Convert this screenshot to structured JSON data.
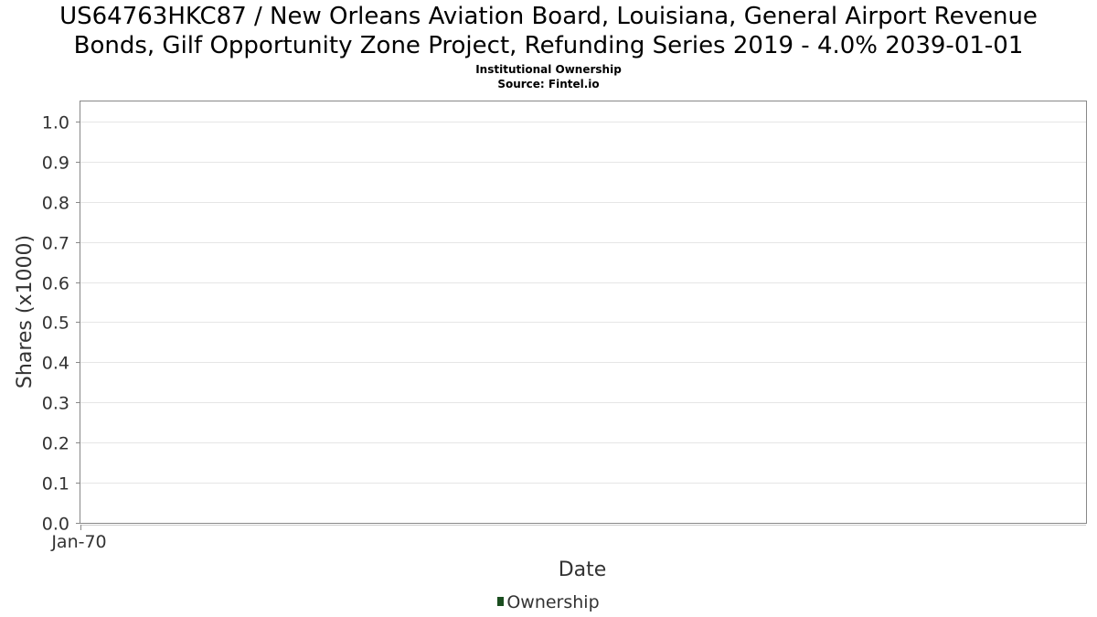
{
  "header": {
    "title_line_1": "US64763HKC87 / New Orleans Aviation Board, Louisiana, General Airport Revenue",
    "title_line_2": "Bonds, Gilf Opportunity Zone Project, Refunding Series 2019 - 4.0% 2039-01-01",
    "subtitle_line_1": "Institutional Ownership",
    "subtitle_line_2": "Source: Fintel.io"
  },
  "colors": {
    "series": "#1a4d1f",
    "gridline": "#e6e6e6",
    "plot_border": "#888888"
  },
  "chart_data": {
    "type": "area",
    "title": "US64763HKC87 / New Orleans Aviation Board, Louisiana, General Airport Revenue Bonds, Gilf Opportunity Zone Project, Refunding Series 2019 - 4.0% 2039-01-01",
    "subtitle": "Institutional Ownership\nSource: Fintel.io",
    "xlabel": "Date",
    "ylabel": "Shares (x1000)",
    "x_tick_labels": [
      "Jan-70"
    ],
    "y_tick_labels": [
      "0.0",
      "0.1",
      "0.2",
      "0.3",
      "0.4",
      "0.5",
      "0.6",
      "0.7",
      "0.8",
      "0.9",
      "1.0"
    ],
    "ylim": [
      0,
      1.05
    ],
    "grid": true,
    "legend_position": "bottom-center",
    "series": [
      {
        "name": "Ownership",
        "x": [],
        "values": []
      }
    ]
  }
}
